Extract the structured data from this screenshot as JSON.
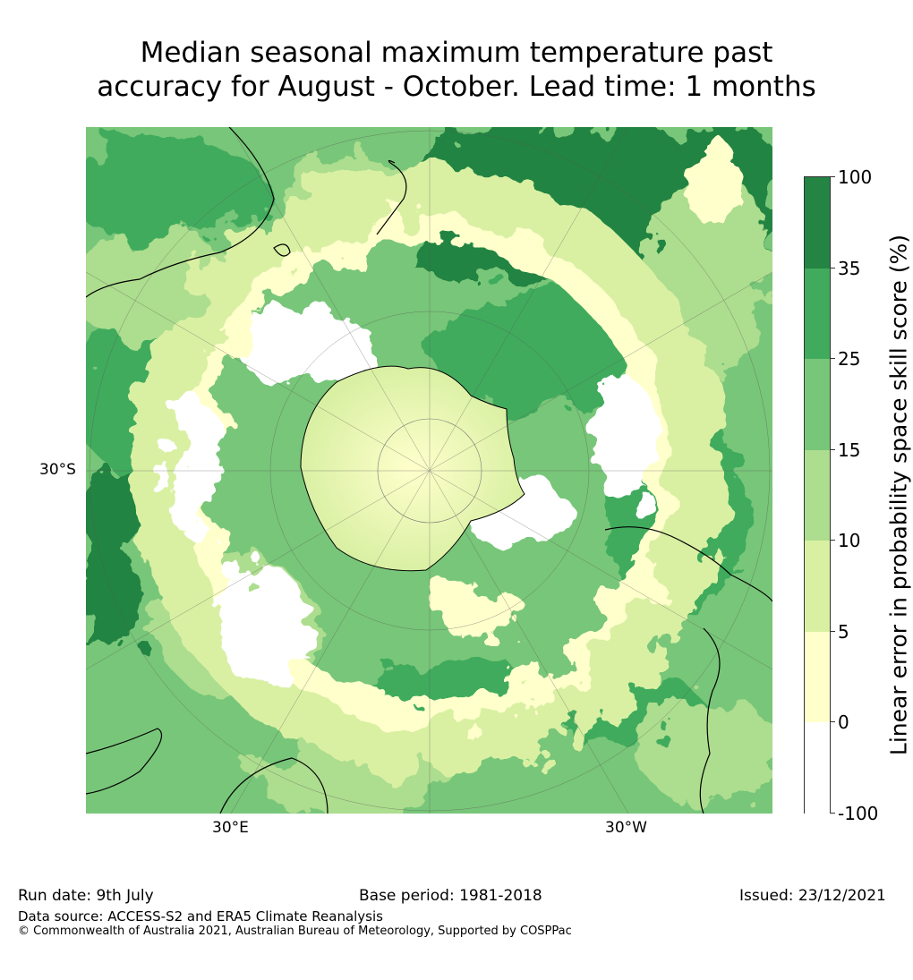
{
  "title": {
    "line1": "Median seasonal maximum temperature past",
    "line2": "accuracy for August - October. Lead time: 1 months"
  },
  "map": {
    "projection": "south-polar stereographic",
    "tick_labels": {
      "lat_left": "30°S",
      "lon_left": "30°E",
      "lon_right": "30°W"
    },
    "land_visible": [
      "Antarctica",
      "Australia",
      "New Zealand",
      "South America",
      "Africa"
    ]
  },
  "colorbar": {
    "title": "Linear error in probability space skill score (%)",
    "levels": [
      "100",
      "35",
      "25",
      "15",
      "10",
      "5",
      "0",
      "-100"
    ],
    "bins": [
      {
        "from": "35",
        "to": "100",
        "color": "#238443"
      },
      {
        "from": "25",
        "to": "35",
        "color": "#41ab5d"
      },
      {
        "from": "15",
        "to": "25",
        "color": "#78c679"
      },
      {
        "from": "10",
        "to": "15",
        "color": "#addd8e"
      },
      {
        "from": "5",
        "to": "10",
        "color": "#d9f0a3"
      },
      {
        "from": "0",
        "to": "5",
        "color": "#ffffcc"
      },
      {
        "from": "-100",
        "to": "0",
        "color": "#ffffff"
      }
    ]
  },
  "footer": {
    "run_date": "Run date: 9th July",
    "base_period": "Base period: 1981-2018",
    "issued": "Issued: 23/12/2021",
    "data_source": "Data source: ACCESS-S2 and ERA5 Climate Reanalysis",
    "copyright": "© Commonwealth of Australia 2021, Australian Bureau of Meteorology, Supported by COSPPac"
  }
}
